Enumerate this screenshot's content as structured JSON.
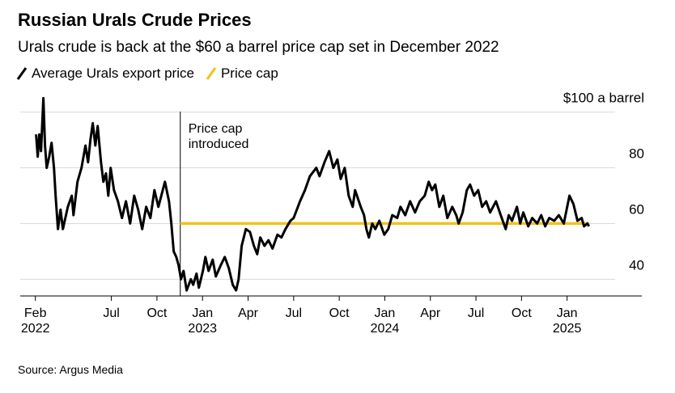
{
  "chart_data": {
    "type": "line",
    "title": "Russian Urals Crude Prices",
    "subtitle": "Urals crude is back at the $60 a barrel price cap set in December 2022",
    "source": "Source: Argus Media",
    "annotation": {
      "text": "Price cap\nintroduced",
      "x": 2022.878
    },
    "xlim": [
      2022.0,
      2025.41
    ],
    "ylim": [
      34,
      106
    ],
    "yticks": [
      40,
      60,
      80,
      {
        "value": 100,
        "label": "$100 a barrel"
      }
    ],
    "xticks": [
      {
        "value": 2022.083,
        "label": "Feb\n2022"
      },
      {
        "value": 2022.5,
        "label": "Jul"
      },
      {
        "value": 2022.75,
        "label": "Oct"
      },
      {
        "value": 2023.0,
        "label": "Jan\n2023"
      },
      {
        "value": 2023.25,
        "label": "Apr"
      },
      {
        "value": 2023.5,
        "label": "Jul"
      },
      {
        "value": 2023.75,
        "label": "Oct"
      },
      {
        "value": 2024.0,
        "label": "Jan\n2024"
      },
      {
        "value": 2024.25,
        "label": "Apr"
      },
      {
        "value": 2024.5,
        "label": "Jul"
      },
      {
        "value": 2024.75,
        "label": "Oct"
      },
      {
        "value": 2025.0,
        "label": "Jan\n2025"
      }
    ],
    "grid": true,
    "series": [
      {
        "name": "Average Urals export price",
        "color": "#000000",
        "x": [
          2022.087,
          2022.096,
          2022.105,
          2022.114,
          2022.127,
          2022.136,
          2022.145,
          2022.159,
          2022.172,
          2022.185,
          2022.194,
          2022.207,
          2022.221,
          2022.234,
          2022.261,
          2022.283,
          2022.292,
          2022.314,
          2022.336,
          2022.358,
          2022.372,
          2022.385,
          2022.398,
          2022.412,
          2022.425,
          2022.443,
          2022.456,
          2022.47,
          2022.483,
          2022.496,
          2022.514,
          2022.536,
          2022.558,
          2022.58,
          2022.603,
          2022.625,
          2022.647,
          2022.669,
          2022.691,
          2022.714,
          2022.736,
          2022.758,
          2022.794,
          2022.816,
          2022.829,
          2022.842,
          2022.856,
          2022.869,
          2022.882,
          2022.896,
          2022.913,
          2022.936,
          2022.949,
          2022.967,
          2022.98,
          2023.002,
          2023.016,
          2023.033,
          2023.056,
          2023.073,
          2023.1,
          2023.122,
          2023.144,
          2023.166,
          2023.184,
          2023.198,
          2023.215,
          2023.238,
          2023.26,
          2023.282,
          2023.3,
          2023.317,
          2023.34,
          2023.362,
          2023.384,
          2023.411,
          2023.433,
          2023.455,
          2023.482,
          2023.5,
          2023.535,
          2023.562,
          2023.589,
          2023.624,
          2023.642,
          2023.669,
          2023.695,
          2023.718,
          2023.74,
          2023.758,
          2023.78,
          2023.802,
          2023.824,
          2023.837,
          2023.868,
          2023.886,
          2023.899,
          2023.913,
          2023.931,
          2023.948,
          2023.97,
          2023.997,
          2024.019,
          2024.041,
          2024.068,
          2024.086,
          2024.112,
          2024.139,
          2024.166,
          2024.192,
          2024.219,
          2024.241,
          2024.259,
          2024.277,
          2024.299,
          2024.321,
          2024.343,
          2024.37,
          2024.392,
          2024.405,
          2024.427,
          2024.45,
          2024.468,
          2024.49,
          2024.512,
          2024.534,
          2024.556,
          2024.578,
          2024.61,
          2024.636,
          2024.663,
          2024.68,
          2024.698,
          2024.725,
          2024.743,
          2024.76,
          2024.787,
          2024.809,
          2024.836,
          2024.858,
          2024.88,
          2024.902,
          2024.929,
          2024.955,
          2024.982,
          2025.013,
          2025.035,
          2025.057,
          2025.08,
          2025.093,
          2025.111,
          2025.12
        ],
        "values": [
          92,
          84,
          92,
          86,
          105,
          88,
          80,
          84,
          89,
          80,
          70,
          58,
          65,
          58,
          66,
          70,
          63,
          75,
          80,
          88,
          82,
          90,
          96,
          88,
          95,
          82,
          75,
          78,
          70,
          80,
          72,
          68,
          62,
          68,
          60,
          70,
          65,
          58,
          66,
          62,
          72,
          66,
          75,
          68,
          60,
          50,
          48,
          45,
          40,
          43,
          36,
          40,
          38,
          42,
          37,
          43,
          48,
          43,
          47,
          41,
          45,
          48,
          44,
          38,
          36,
          40,
          52,
          58,
          57,
          52,
          49,
          55,
          52,
          54,
          51,
          56,
          55,
          58,
          61,
          62,
          68,
          72,
          77,
          80,
          77,
          82,
          86,
          80,
          83,
          76,
          80,
          70,
          66,
          72,
          66,
          63,
          58,
          55,
          60,
          58,
          61,
          56,
          58,
          63,
          62,
          66,
          63,
          68,
          64,
          68,
          70,
          75,
          72,
          74,
          66,
          70,
          62,
          66,
          63,
          60,
          64,
          72,
          74,
          70,
          72,
          66,
          68,
          64,
          68,
          63,
          58,
          63,
          61,
          66,
          60,
          64,
          59,
          62,
          60,
          63,
          59,
          62,
          61,
          63,
          60,
          70,
          67,
          61,
          62,
          59,
          60,
          59
        ]
      },
      {
        "name": "Price cap",
        "color": "#f2c21b",
        "x": [
          2022.878,
          2025.12
        ],
        "values": [
          60,
          60
        ]
      }
    ]
  }
}
